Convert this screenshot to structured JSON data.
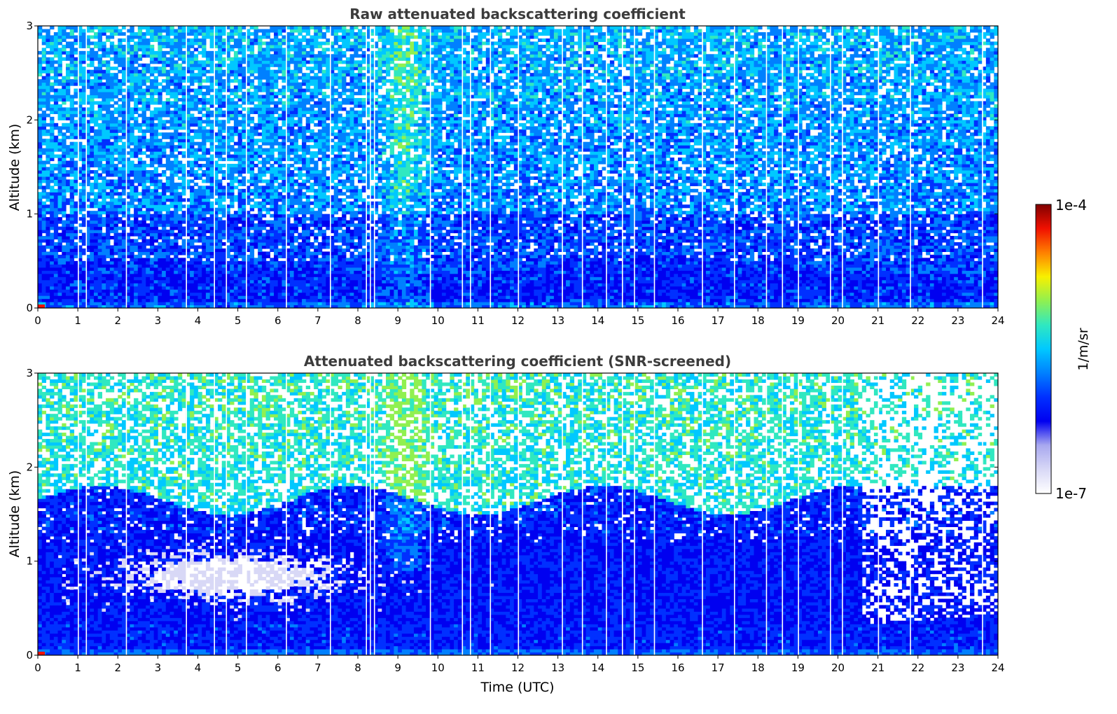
{
  "colors": {
    "colormap": [
      "#ffffff",
      "#d8d8f6",
      "#a8a8ef",
      "#0000f0",
      "#0030ff",
      "#0080ff",
      "#00c8ff",
      "#30e8c0",
      "#90f050",
      "#f8f000",
      "#ff8000",
      "#f01000",
      "#800000"
    ],
    "background": "#ffffff",
    "title_text": "#3c3c3c"
  },
  "chart_data": [
    {
      "type": "heatmap",
      "title": "Raw attenuated backscattering coefficient",
      "xlabel": "",
      "ylabel": "Altitude (km)",
      "xlim": [
        0,
        24
      ],
      "ylim": [
        0,
        3
      ],
      "xticks": [
        "0",
        "1",
        "2",
        "3",
        "4",
        "5",
        "6",
        "7",
        "8",
        "9",
        "10",
        "11",
        "12",
        "13",
        "14",
        "15",
        "16",
        "17",
        "18",
        "19",
        "20",
        "21",
        "22",
        "23",
        "24"
      ],
      "yticks": [
        "0",
        "1",
        "2",
        "3"
      ],
      "features": {
        "boundary_layer_top_km": 0.45,
        "aerosol_plume_time_utc": 9.2,
        "screened": false
      }
    },
    {
      "type": "heatmap",
      "title": "Attenuated backscattering coefficient (SNR-screened)",
      "xlabel": "Time (UTC)",
      "ylabel": "Altitude (km)",
      "xlim": [
        0,
        24
      ],
      "ylim": [
        0,
        3
      ],
      "xticks": [
        "0",
        "1",
        "2",
        "3",
        "4",
        "5",
        "6",
        "7",
        "8",
        "9",
        "10",
        "11",
        "12",
        "13",
        "14",
        "15",
        "16",
        "17",
        "18",
        "19",
        "20",
        "21",
        "22",
        "23",
        "24"
      ],
      "yticks": [
        "0",
        "1",
        "2",
        "3"
      ],
      "features": {
        "boundary_layer_top_km": 1.8,
        "aerosol_plume_time_utc": 9.2,
        "screened": true
      }
    }
  ],
  "colorbar": {
    "label": "1/m/sr",
    "max_label": "1e-4",
    "min_label": "1e-7",
    "scale": "log",
    "range": [
      1e-07,
      0.0001
    ]
  }
}
